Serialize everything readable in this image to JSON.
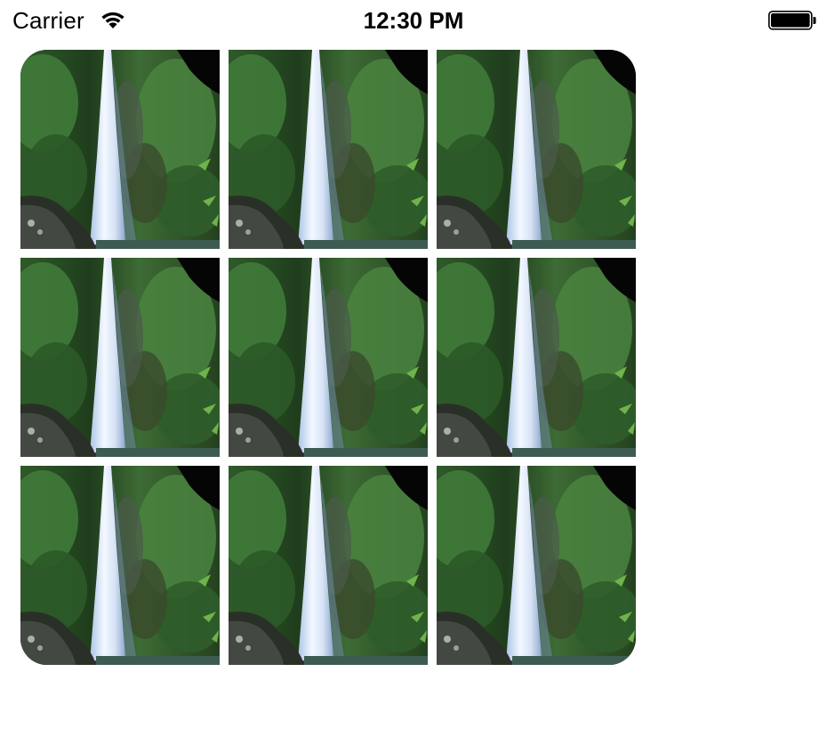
{
  "status_bar": {
    "carrier": "Carrier",
    "time": "12:30 PM",
    "icons": [
      "wifi-icon",
      "battery-icon"
    ]
  },
  "grid": {
    "rows": 3,
    "columns": 3,
    "tiles": [
      {
        "image": "waterfall-photo"
      },
      {
        "image": "waterfall-photo"
      },
      {
        "image": "waterfall-photo"
      },
      {
        "image": "waterfall-photo"
      },
      {
        "image": "waterfall-photo"
      },
      {
        "image": "waterfall-photo"
      },
      {
        "image": "waterfall-photo"
      },
      {
        "image": "waterfall-photo"
      },
      {
        "image": "waterfall-photo"
      }
    ]
  }
}
